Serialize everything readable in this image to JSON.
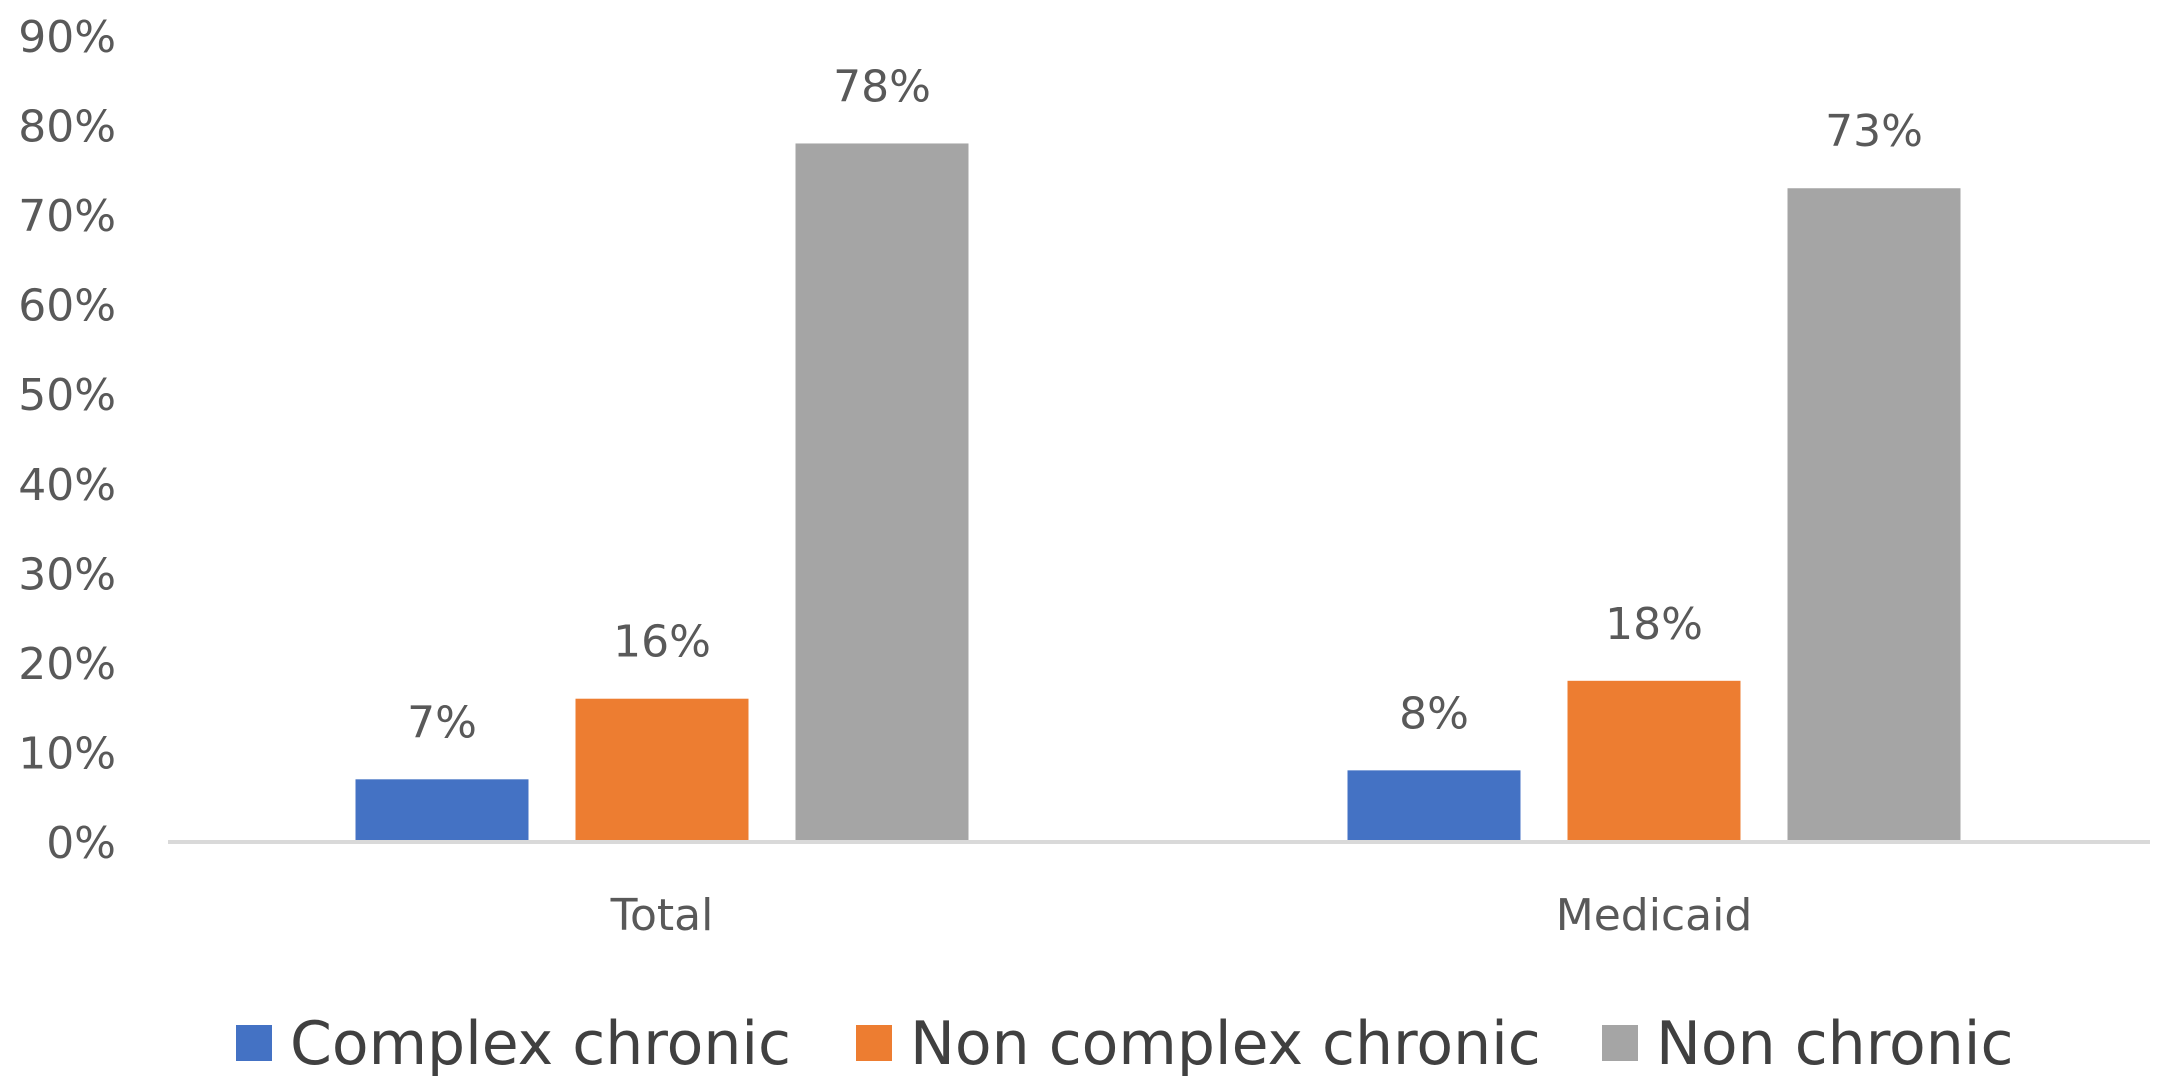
{
  "chart_data": {
    "type": "bar",
    "title": "",
    "xlabel": "",
    "ylabel": "",
    "categories": [
      "Total",
      "Medicaid"
    ],
    "series": [
      {
        "name": "Complex chronic",
        "values": [
          7,
          8
        ],
        "labels": [
          "7%",
          "8%"
        ],
        "color": "#4472C4"
      },
      {
        "name": "Non complex chronic",
        "values": [
          16,
          18
        ],
        "labels": [
          "16%",
          "18%"
        ],
        "color": "#ED7D31"
      },
      {
        "name": "Non chronic",
        "values": [
          78,
          73
        ],
        "labels": [
          "78%",
          "73%"
        ],
        "color": "#A5A5A5"
      }
    ],
    "ylim": [
      0,
      90
    ],
    "yticks": [
      "0%",
      "10%",
      "20%",
      "30%",
      "40%",
      "50%",
      "60%",
      "70%",
      "80%",
      "90%"
    ],
    "grid": false,
    "legend": "bottom"
  }
}
